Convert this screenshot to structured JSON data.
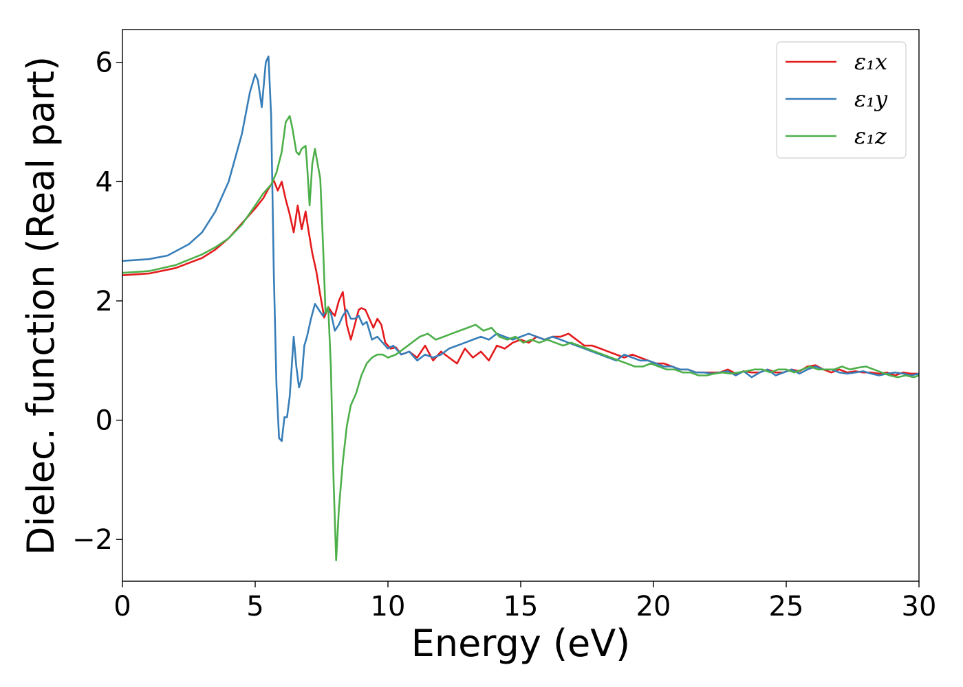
{
  "chart_data": {
    "type": "line",
    "xlabel": "Energy (eV)",
    "ylabel": "Dielec. function (Real part)",
    "xlim": [
      0,
      30
    ],
    "ylim": [
      -2.7,
      6.55
    ],
    "xticks": [
      0,
      5,
      10,
      15,
      20,
      25,
      30
    ],
    "xtick_labels": [
      "0",
      "5",
      "10",
      "15",
      "20",
      "25",
      "30"
    ],
    "yticks": [
      -2,
      0,
      2,
      4,
      6
    ],
    "ytick_labels": [
      "−2",
      "0",
      "2",
      "4",
      "6"
    ],
    "grid": false,
    "legend_position": "top-right",
    "series": [
      {
        "name": "ε₁x",
        "color": "#e41a1c",
        "x": [
          0,
          1,
          2,
          3,
          3.5,
          4,
          4.5,
          5,
          5.3,
          5.5,
          5.7,
          5.85,
          6.0,
          6.15,
          6.3,
          6.45,
          6.6,
          6.75,
          6.9,
          7.0,
          7.15,
          7.3,
          7.45,
          7.6,
          7.75,
          7.9,
          8.0,
          8.15,
          8.3,
          8.45,
          8.6,
          8.75,
          8.9,
          9.0,
          9.15,
          9.3,
          9.45,
          9.6,
          9.75,
          9.9,
          10.1,
          10.3,
          10.5,
          10.8,
          11.1,
          11.4,
          11.7,
          12.0,
          12.3,
          12.6,
          12.9,
          13.2,
          13.5,
          13.8,
          14.1,
          14.4,
          14.7,
          15.0,
          15.3,
          15.6,
          15.9,
          16.2,
          16.5,
          16.8,
          17.1,
          17.4,
          17.7,
          18.0,
          18.3,
          18.6,
          18.9,
          19.2,
          19.5,
          19.8,
          20.1,
          20.4,
          20.7,
          21.0,
          21.3,
          21.6,
          21.9,
          22.2,
          22.5,
          22.8,
          23.1,
          23.4,
          23.7,
          24.0,
          24.3,
          24.6,
          24.9,
          25.2,
          25.5,
          25.8,
          26.1,
          26.4,
          26.7,
          27.0,
          27.3,
          27.6,
          27.9,
          28.2,
          28.5,
          28.8,
          29.1,
          29.4,
          29.7,
          30.0
        ],
        "y": [
          2.43,
          2.46,
          2.55,
          2.72,
          2.86,
          3.05,
          3.3,
          3.55,
          3.72,
          3.88,
          4.02,
          3.85,
          4.0,
          3.7,
          3.45,
          3.15,
          3.6,
          3.2,
          3.5,
          3.2,
          2.8,
          2.5,
          2.1,
          1.72,
          1.9,
          1.8,
          1.75,
          2.0,
          2.15,
          1.6,
          1.35,
          1.6,
          1.85,
          1.88,
          1.85,
          1.7,
          1.55,
          1.7,
          1.6,
          1.3,
          1.2,
          1.22,
          1.1,
          1.15,
          1.05,
          1.25,
          1.0,
          1.15,
          1.05,
          0.95,
          1.2,
          1.05,
          1.15,
          1.0,
          1.25,
          1.2,
          1.3,
          1.35,
          1.3,
          1.4,
          1.35,
          1.4,
          1.4,
          1.45,
          1.35,
          1.25,
          1.25,
          1.2,
          1.15,
          1.1,
          1.05,
          1.1,
          1.05,
          1.0,
          0.95,
          0.95,
          0.9,
          0.85,
          0.85,
          0.8,
          0.8,
          0.8,
          0.8,
          0.85,
          0.78,
          0.82,
          0.8,
          0.8,
          0.85,
          0.8,
          0.8,
          0.85,
          0.82,
          0.9,
          0.92,
          0.85,
          0.8,
          0.85,
          0.8,
          0.82,
          0.8,
          0.8,
          0.78,
          0.8,
          0.75,
          0.8,
          0.78,
          0.78
        ]
      },
      {
        "name": "ε₁y",
        "color": "#377eb8",
        "x": [
          0,
          1,
          1.7,
          2.5,
          3,
          3.5,
          4,
          4.5,
          4.8,
          5.0,
          5.1,
          5.25,
          5.4,
          5.5,
          5.6,
          5.7,
          5.8,
          5.9,
          6.0,
          6.1,
          6.2,
          6.3,
          6.45,
          6.55,
          6.65,
          6.75,
          6.85,
          6.95,
          7.1,
          7.25,
          7.4,
          7.55,
          7.7,
          7.85,
          8.0,
          8.15,
          8.3,
          8.45,
          8.6,
          8.75,
          8.9,
          9.05,
          9.2,
          9.4,
          9.6,
          9.8,
          10.0,
          10.2,
          10.5,
          10.8,
          11.1,
          11.4,
          11.7,
          12.0,
          12.3,
          12.6,
          12.9,
          13.2,
          13.5,
          13.8,
          14.1,
          14.4,
          14.7,
          15.0,
          15.3,
          15.6,
          15.9,
          16.2,
          16.5,
          16.8,
          17.1,
          17.4,
          17.7,
          18.0,
          18.3,
          18.6,
          18.9,
          19.2,
          19.5,
          19.8,
          20.1,
          20.4,
          20.7,
          21.0,
          21.3,
          21.6,
          21.9,
          22.2,
          22.5,
          22.8,
          23.1,
          23.4,
          23.7,
          24.0,
          24.3,
          24.6,
          24.9,
          25.2,
          25.5,
          25.8,
          26.1,
          26.4,
          26.7,
          27.0,
          27.3,
          27.6,
          27.9,
          28.2,
          28.5,
          28.8,
          29.1,
          29.4,
          29.7,
          30.0
        ],
        "y": [
          2.67,
          2.7,
          2.76,
          2.95,
          3.15,
          3.5,
          4.0,
          4.8,
          5.5,
          5.8,
          5.7,
          5.25,
          6.0,
          6.1,
          5.1,
          2.5,
          0.6,
          -0.3,
          -0.35,
          0.05,
          0.05,
          0.4,
          1.4,
          0.9,
          0.55,
          0.7,
          1.25,
          1.4,
          1.7,
          1.95,
          1.85,
          1.75,
          1.85,
          1.8,
          1.5,
          1.6,
          1.75,
          1.85,
          1.7,
          1.7,
          1.75,
          1.6,
          1.65,
          1.35,
          1.4,
          1.3,
          1.2,
          1.25,
          1.1,
          1.15,
          1.0,
          1.1,
          1.05,
          1.1,
          1.2,
          1.25,
          1.3,
          1.35,
          1.4,
          1.35,
          1.45,
          1.4,
          1.35,
          1.4,
          1.45,
          1.4,
          1.35,
          1.4,
          1.35,
          1.3,
          1.25,
          1.2,
          1.15,
          1.1,
          1.05,
          1.0,
          1.1,
          1.05,
          1.0,
          1.0,
          0.95,
          0.9,
          0.9,
          0.85,
          0.85,
          0.8,
          0.8,
          0.78,
          0.8,
          0.82,
          0.75,
          0.82,
          0.72,
          0.8,
          0.85,
          0.75,
          0.8,
          0.85,
          0.78,
          0.85,
          0.9,
          0.85,
          0.85,
          0.8,
          0.78,
          0.8,
          0.82,
          0.78,
          0.75,
          0.78,
          0.8,
          0.78,
          0.75,
          0.78
        ]
      },
      {
        "name": "ε₁z",
        "color": "#4daf4a",
        "x": [
          0,
          1,
          2,
          3,
          3.5,
          4,
          4.5,
          5,
          5.3,
          5.6,
          5.8,
          6.0,
          6.15,
          6.3,
          6.4,
          6.55,
          6.65,
          6.75,
          6.9,
          6.95,
          7.05,
          7.15,
          7.25,
          7.35,
          7.45,
          7.55,
          7.65,
          7.75,
          7.85,
          7.95,
          8.05,
          8.15,
          8.3,
          8.45,
          8.6,
          8.8,
          9.0,
          9.2,
          9.4,
          9.6,
          9.8,
          10.0,
          10.3,
          10.6,
          10.9,
          11.2,
          11.5,
          11.8,
          12.1,
          12.4,
          12.7,
          13.0,
          13.3,
          13.6,
          13.9,
          14.2,
          14.5,
          14.8,
          15.1,
          15.4,
          15.7,
          16.0,
          16.3,
          16.6,
          16.9,
          17.2,
          17.5,
          17.8,
          18.1,
          18.4,
          18.7,
          19.0,
          19.3,
          19.6,
          19.9,
          20.2,
          20.5,
          20.8,
          21.1,
          21.4,
          21.7,
          22.0,
          22.3,
          22.6,
          22.9,
          23.2,
          23.5,
          23.8,
          24.1,
          24.4,
          24.7,
          25.0,
          25.3,
          25.6,
          25.9,
          26.2,
          26.5,
          26.8,
          27.1,
          27.4,
          27.7,
          28.0,
          28.3,
          28.6,
          28.9,
          29.2,
          29.5,
          29.8,
          30.0
        ],
        "y": [
          2.47,
          2.5,
          2.6,
          2.78,
          2.9,
          3.05,
          3.28,
          3.6,
          3.8,
          3.95,
          4.15,
          4.5,
          5.0,
          5.1,
          4.9,
          4.5,
          4.45,
          4.55,
          4.6,
          4.3,
          3.6,
          4.3,
          4.55,
          4.3,
          4.05,
          3.0,
          1.8,
          1.9,
          0.9,
          -1.0,
          -2.35,
          -1.5,
          -0.7,
          -0.1,
          0.25,
          0.45,
          0.75,
          0.95,
          1.05,
          1.1,
          1.1,
          1.05,
          1.1,
          1.2,
          1.3,
          1.4,
          1.45,
          1.35,
          1.4,
          1.45,
          1.5,
          1.55,
          1.6,
          1.5,
          1.55,
          1.4,
          1.35,
          1.4,
          1.3,
          1.35,
          1.3,
          1.35,
          1.3,
          1.25,
          1.3,
          1.25,
          1.2,
          1.15,
          1.1,
          1.05,
          1.0,
          0.95,
          0.9,
          0.9,
          0.95,
          0.9,
          0.85,
          0.85,
          0.8,
          0.8,
          0.75,
          0.75,
          0.78,
          0.8,
          0.78,
          0.8,
          0.82,
          0.85,
          0.85,
          0.8,
          0.85,
          0.85,
          0.8,
          0.85,
          0.9,
          0.85,
          0.85,
          0.85,
          0.9,
          0.85,
          0.88,
          0.9,
          0.85,
          0.8,
          0.75,
          0.72,
          0.75,
          0.72,
          0.75
        ]
      }
    ]
  }
}
